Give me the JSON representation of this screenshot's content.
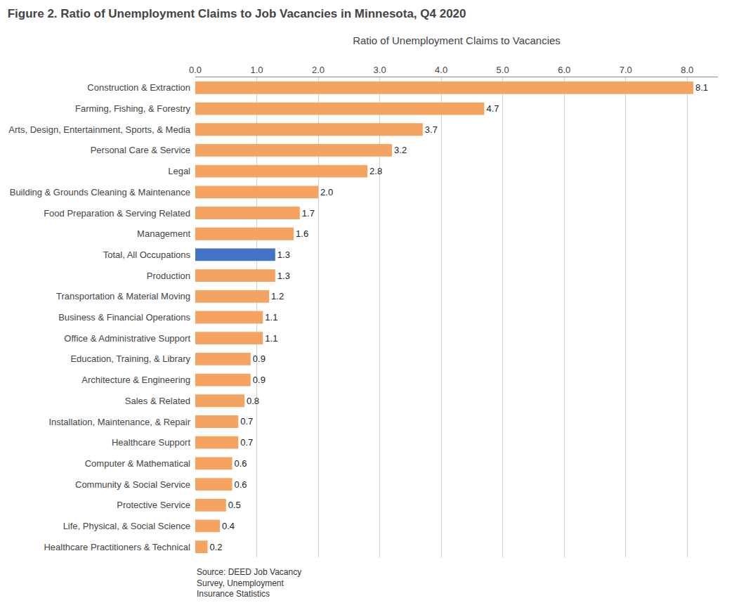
{
  "chart_data": {
    "type": "bar",
    "orientation": "horizontal",
    "title": "Figure 2. Ratio of Unemployment Claims to Job Vacancies in Minnesota, Q4 2020",
    "xlabel": "Ratio of Unemployment Claims to Vacancies",
    "categories": [
      "Construction & Extraction",
      "Farming, Fishing, & Forestry",
      "Arts, Design, Entertainment, Sports, & Media",
      "Personal Care & Service",
      "Legal",
      "Building & Grounds Cleaning & Maintenance",
      "Food Preparation & Serving Related",
      "Management",
      "Total, All Occupations",
      "Production",
      "Transportation & Material Moving",
      "Business & Financial Operations",
      "Office & Administrative Support",
      "Education, Training, & Library",
      "Architecture & Engineering",
      "Sales & Related",
      "Installation, Maintenance, & Repair",
      "Healthcare Support",
      "Computer & Mathematical",
      "Community & Social Service",
      "Protective Service",
      "Life, Physical, & Social Science",
      "Healthcare Practitioners & Technical"
    ],
    "values": [
      8.1,
      4.7,
      3.7,
      3.2,
      2.8,
      2.0,
      1.7,
      1.6,
      1.3,
      1.3,
      1.2,
      1.1,
      1.1,
      0.9,
      0.9,
      0.8,
      0.7,
      0.7,
      0.6,
      0.6,
      0.5,
      0.4,
      0.2
    ],
    "value_labels": [
      "8.1",
      "4.7",
      "3.7",
      "3.2",
      "2.8",
      "2.0",
      "1.7",
      "1.6",
      "1.3",
      "1.3",
      "1.2",
      "1.1",
      "1.1",
      "0.9",
      "0.9",
      "0.8",
      "0.7",
      "0.7",
      "0.6",
      "0.6",
      "0.5",
      "0.4",
      "0.2"
    ],
    "data_labels": true,
    "colors": [
      "#F4A460",
      "#F4A460",
      "#F4A460",
      "#F4A460",
      "#F4A460",
      "#F4A460",
      "#F4A460",
      "#F4A460",
      "#4472C4",
      "#F4A460",
      "#F4A460",
      "#F4A460",
      "#F4A460",
      "#F4A460",
      "#F4A460",
      "#F4A460",
      "#F4A460",
      "#F4A460",
      "#F4A460",
      "#F4A460",
      "#F4A460",
      "#F4A460",
      "#F4A460"
    ],
    "xlim": [
      0,
      8.5
    ],
    "xticks": [
      {
        "value": 0.0,
        "label": "0.0"
      },
      {
        "value": 1.0,
        "label": "1.0"
      },
      {
        "value": 2.0,
        "label": "2.0"
      },
      {
        "value": 3.0,
        "label": "3.0"
      },
      {
        "value": 4.0,
        "label": "4.0"
      },
      {
        "value": 5.0,
        "label": "5.0"
      },
      {
        "value": 6.0,
        "label": "6.0"
      },
      {
        "value": 7.0,
        "label": "7.0"
      },
      {
        "value": 8.0,
        "label": "8.0"
      }
    ],
    "grid": true,
    "annotations": [
      "Source: DEED Job Vacancy\nSurvey, Unemployment\nInsurance Statistics"
    ]
  }
}
